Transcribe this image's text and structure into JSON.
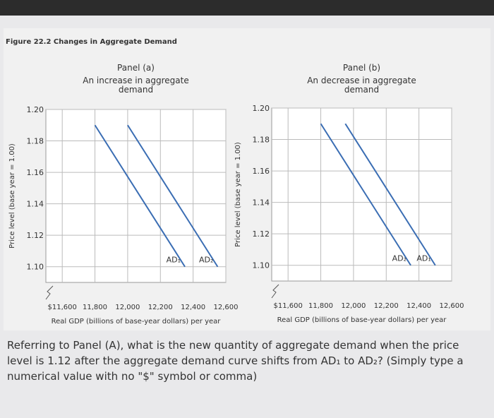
{
  "figure_title": "Figure 22.2 Changes in Aggregate Demand",
  "question": "Referring to Panel (A), what is the new quantity of aggregate demand when the price level is 1.12 after the aggregate demand curve shifts from AD₁ to AD₂? (Simply type a numerical value with no \"$\" symbol or comma)",
  "chart_data": [
    {
      "type": "line",
      "title": "Panel (a)",
      "subtitle": "An increase in aggregate demand",
      "xlabel": "Real GDP (billions of base-year dollars) per year",
      "ylabel": "Price level (base year = 1.00)",
      "xlim": [
        11500,
        12600
      ],
      "ylim": [
        1.09,
        1.2
      ],
      "xticks": [
        {
          "value": 11600,
          "label": "$11,600"
        },
        {
          "value": 11800,
          "label": "11,800"
        },
        {
          "value": 12000,
          "label": "12,000"
        },
        {
          "value": 12200,
          "label": "12,200"
        },
        {
          "value": 12400,
          "label": "12,400"
        },
        {
          "value": 12600,
          "label": "12,600"
        }
      ],
      "yticks": [
        {
          "value": 1.1,
          "label": "1.10"
        },
        1.12,
        1.14,
        1.16,
        1.18,
        {
          "value": 1.2,
          "label": "1.20"
        }
      ],
      "grid": true,
      "series": [
        {
          "name": "AD₁",
          "color": "#3a6db3",
          "x": [
            11800,
            12350
          ],
          "values": [
            1.19,
            1.1
          ]
        },
        {
          "name": "AD₂",
          "color": "#3a6db3",
          "x": [
            12000,
            12550
          ],
          "values": [
            1.19,
            1.1
          ]
        }
      ]
    },
    {
      "type": "line",
      "title": "Panel (b)",
      "subtitle": "An decrease in aggregate demand",
      "xlabel": "Real GDP (billions of base-year dollars) per year",
      "ylabel": "Price level (base year = 1.00)",
      "xlim": [
        11500,
        12600
      ],
      "ylim": [
        1.09,
        1.2
      ],
      "xticks": [
        {
          "value": 11600,
          "label": "$11,600"
        },
        {
          "value": 11800,
          "label": "11,800"
        },
        {
          "value": 12000,
          "label": "12,000"
        },
        {
          "value": 12200,
          "label": "12,200"
        },
        {
          "value": 12400,
          "label": "12,400"
        },
        {
          "value": 12600,
          "label": "12,600"
        }
      ],
      "yticks": [
        {
          "value": 1.1,
          "label": "1.10"
        },
        1.12,
        1.14,
        1.16,
        1.18,
        {
          "value": 1.2,
          "label": "1.20"
        }
      ],
      "grid": true,
      "series": [
        {
          "name": "AD₂",
          "color": "#3a6db3",
          "x": [
            11800,
            12350
          ],
          "values": [
            1.19,
            1.1
          ]
        },
        {
          "name": "AD₁",
          "color": "#3a6db3",
          "x": [
            11950,
            12500
          ],
          "values": [
            1.19,
            1.1
          ]
        }
      ]
    }
  ]
}
